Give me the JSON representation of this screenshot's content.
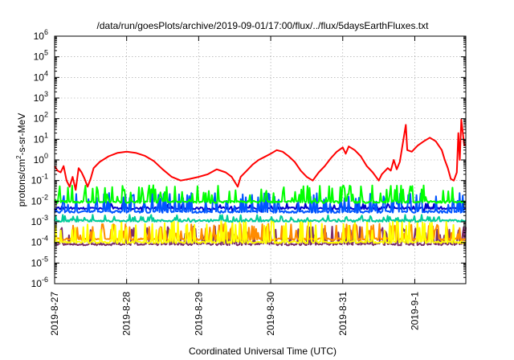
{
  "chart_data": {
    "type": "line",
    "title": "/data/run/goesPlots/archive/2019-09-01/17:00/flux/../flux/5daysEarthFluxes.txt",
    "xlabel": "Coordinated Universal Time (UTC)",
    "ylabel_parts": {
      "base": "protons/cm",
      "sup": "2",
      "rest": "-s-sr-MeV"
    },
    "y_scale": "log",
    "ylim": [
      1e-06,
      1000000.0
    ],
    "y_ticks": [
      {
        "value": 1e-06,
        "base": "10",
        "exp": "-6"
      },
      {
        "value": 1e-05,
        "base": "10",
        "exp": "-5"
      },
      {
        "value": 0.0001,
        "base": "10",
        "exp": "-4"
      },
      {
        "value": 0.001,
        "base": "10",
        "exp": "-3"
      },
      {
        "value": 0.01,
        "base": "10",
        "exp": "-2"
      },
      {
        "value": 0.1,
        "base": "10",
        "exp": "-1"
      },
      {
        "value": 1,
        "base": "10",
        "exp": "0"
      },
      {
        "value": 10,
        "base": "10",
        "exp": "1"
      },
      {
        "value": 100,
        "base": "10",
        "exp": "2"
      },
      {
        "value": 1000,
        "base": "10",
        "exp": "3"
      },
      {
        "value": 10000,
        "base": "10",
        "exp": "4"
      },
      {
        "value": 100000,
        "base": "10",
        "exp": "5"
      },
      {
        "value": 1000000,
        "base": "10",
        "exp": "6"
      }
    ],
    "x_range": [
      "2019-08-27 00:00",
      "2019-09-01 17:00"
    ],
    "x_ticks": [
      "2019-8-27",
      "2019-8-28",
      "2019-8-29",
      "2019-8-30",
      "2019-8-31",
      "2019-9-1"
    ],
    "grid": true,
    "series": [
      {
        "color": "#ff0000",
        "points": [
          [
            "2019-08-27 00:00",
            0.5
          ],
          [
            "2019-08-27 01:00",
            0.3
          ],
          [
            "2019-08-27 02:00",
            0.25
          ],
          [
            "2019-08-27 03:00",
            0.5
          ],
          [
            "2019-08-27 04:00",
            0.1
          ],
          [
            "2019-08-27 05:00",
            0.05
          ],
          [
            "2019-08-27 06:00",
            0.15
          ],
          [
            "2019-08-27 07:00",
            0.035
          ],
          [
            "2019-08-27 08:00",
            0.4
          ],
          [
            "2019-08-27 09:00",
            0.25
          ],
          [
            "2019-08-27 10:00",
            0.12
          ],
          [
            "2019-08-27 11:00",
            0.05
          ],
          [
            "2019-08-27 12:00",
            0.12
          ],
          [
            "2019-08-27 13:00",
            0.4
          ],
          [
            "2019-08-27 15:00",
            0.8
          ],
          [
            "2019-08-27 18:00",
            1.5
          ],
          [
            "2019-08-27 21:00",
            2.2
          ],
          [
            "2019-08-28 00:00",
            2.5
          ],
          [
            "2019-08-28 03:00",
            2.2
          ],
          [
            "2019-08-28 06:00",
            1.6
          ],
          [
            "2019-08-28 09:00",
            0.9
          ],
          [
            "2019-08-28 12:00",
            0.35
          ],
          [
            "2019-08-28 15:00",
            0.15
          ],
          [
            "2019-08-28 18:00",
            0.1
          ],
          [
            "2019-08-28 21:00",
            0.12
          ],
          [
            "2019-08-29 00:00",
            0.15
          ],
          [
            "2019-08-29 03:00",
            0.2
          ],
          [
            "2019-08-29 06:00",
            0.35
          ],
          [
            "2019-08-29 09:00",
            0.25
          ],
          [
            "2019-08-29 11:00",
            0.15
          ],
          [
            "2019-08-29 13:00",
            0.05
          ],
          [
            "2019-08-29 14:00",
            0.15
          ],
          [
            "2019-08-29 16:00",
            0.3
          ],
          [
            "2019-08-29 18:00",
            0.6
          ],
          [
            "2019-08-29 20:00",
            1.0
          ],
          [
            "2019-08-29 22:00",
            1.4
          ],
          [
            "2019-08-30 00:00",
            2.0
          ],
          [
            "2019-08-30 02:00",
            3.0
          ],
          [
            "2019-08-30 04:00",
            2.5
          ],
          [
            "2019-08-30 06:00",
            1.5
          ],
          [
            "2019-08-30 08:00",
            0.8
          ],
          [
            "2019-08-30 10:00",
            0.3
          ],
          [
            "2019-08-30 12:00",
            0.15
          ],
          [
            "2019-08-30 14:00",
            0.1
          ],
          [
            "2019-08-30 16:00",
            0.25
          ],
          [
            "2019-08-30 18:00",
            0.5
          ],
          [
            "2019-08-30 20:00",
            1.2
          ],
          [
            "2019-08-30 22:00",
            2.5
          ],
          [
            "2019-08-31 00:00",
            4.0
          ],
          [
            "2019-08-31 01:00",
            2.0
          ],
          [
            "2019-08-31 02:00",
            4.5
          ],
          [
            "2019-08-31 04:00",
            3.0
          ],
          [
            "2019-08-31 06:00",
            1.5
          ],
          [
            "2019-08-31 08:00",
            0.5
          ],
          [
            "2019-08-31 10:00",
            0.25
          ],
          [
            "2019-08-31 12:00",
            0.1
          ],
          [
            "2019-08-31 13:00",
            0.2
          ],
          [
            "2019-08-31 15:00",
            0.4
          ],
          [
            "2019-08-31 16:00",
            0.3
          ],
          [
            "2019-08-31 17:00",
            1.0
          ],
          [
            "2019-08-31 18:00",
            0.35
          ],
          [
            "2019-08-31 19:00",
            0.8
          ],
          [
            "2019-08-31 21:00",
            50.0
          ],
          [
            "2019-08-31 21:30",
            3.0
          ],
          [
            "2019-08-31 23:00",
            2.5
          ],
          [
            "2019-09-01 01:00",
            5.0
          ],
          [
            "2019-09-01 03:00",
            8.0
          ],
          [
            "2019-09-01 05:00",
            12.0
          ],
          [
            "2019-09-01 07:00",
            8.0
          ],
          [
            "2019-09-01 09:00",
            3.0
          ],
          [
            "2019-09-01 10:00",
            1.0
          ],
          [
            "2019-09-01 11:00",
            0.4
          ],
          [
            "2019-09-01 12:00",
            0.12
          ],
          [
            "2019-09-01 13:00",
            0.1
          ],
          [
            "2019-09-01 14:00",
            0.25
          ],
          [
            "2019-09-01 14:30",
            20.0
          ],
          [
            "2019-09-01 15:00",
            1.0
          ],
          [
            "2019-09-01 15:30",
            90.0
          ],
          [
            "2019-09-01 16:00",
            20.0
          ],
          [
            "2019-09-01 16:30",
            5.0
          ],
          [
            "2019-09-01 17:00",
            5.5
          ]
        ]
      },
      {
        "color": "#00ff00",
        "baseline": 0.009,
        "spike_range": [
          0.01,
          0.06
        ]
      },
      {
        "color": "#0055ff",
        "baseline": 0.003,
        "spike_range": [
          0.005,
          0.025
        ]
      },
      {
        "color": "#0000cc",
        "baseline": 0.0045,
        "spike_range": [
          0.003,
          0.008
        ]
      },
      {
        "color": "#00cc99",
        "baseline": 0.0011,
        "spike_range": [
          0.0011,
          0.0022
        ]
      },
      {
        "color": "#ffff00",
        "baseline": 0.0001,
        "spike_range": [
          0.0003,
          0.0012
        ]
      },
      {
        "color": "#ff8c00",
        "baseline": 0.00014,
        "spike_range": [
          0.0002,
          0.0008
        ]
      },
      {
        "color": "#7b2d6b",
        "baseline": 8e-05,
        "spike_range": [
          0.00015,
          0.0006
        ]
      }
    ]
  }
}
